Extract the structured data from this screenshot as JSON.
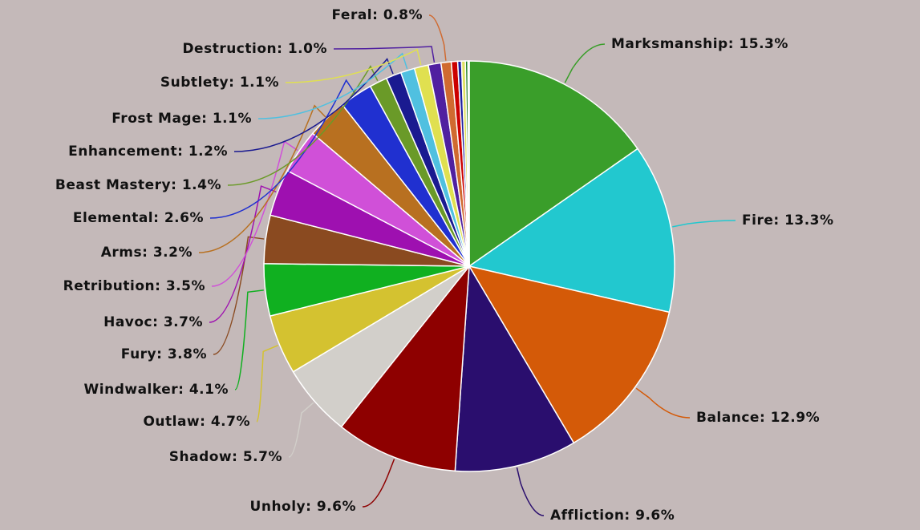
{
  "chart_data": {
    "type": "pie",
    "value_labels": [
      "Marksmanship: 15.3%",
      "Fire: 13.3%",
      "Balance: 12.9%",
      "Affliction: 9.6%",
      "Unholy: 9.6%",
      "Shadow: 5.7%",
      "Outlaw: 4.7%",
      "Windwalker: 4.1%",
      "Fury: 3.8%",
      "Havoc: 3.7%",
      "Retribution: 3.5%",
      "Arms: 3.2%",
      "Elemental: 2.6%",
      "Beast Mastery: 1.4%",
      "Enhancement: 1.2%",
      "Frost Mage: 1.1%",
      "Subtlety: 1.1%",
      "Destruction: 1.0%",
      "Feral: 0.8%",
      null,
      null,
      null,
      null,
      null
    ],
    "values": [
      15.3,
      13.3,
      12.9,
      9.6,
      9.6,
      5.7,
      4.7,
      4.1,
      3.8,
      3.7,
      3.5,
      3.2,
      2.6,
      1.4,
      1.2,
      1.1,
      1.1,
      1.0,
      0.8,
      0.5,
      0.3,
      0.3,
      0.2,
      0.1
    ],
    "colors": [
      "#3a9e2a",
      "#22c8cf",
      "#d45a08",
      "#2a0e6e",
      "#8e0000",
      "#d2cfca",
      "#d4c230",
      "#10b020",
      "#8a4a20",
      "#9e10b0",
      "#d050d8",
      "#b87020",
      "#2030d0",
      "#6a9a28",
      "#1a1a90",
      "#50c0e0",
      "#e0e050",
      "#5020a0",
      "#d06a30",
      "#cc0000",
      "#2020a0",
      "#e0e060",
      "#208020",
      "#a0a0ff"
    ]
  }
}
